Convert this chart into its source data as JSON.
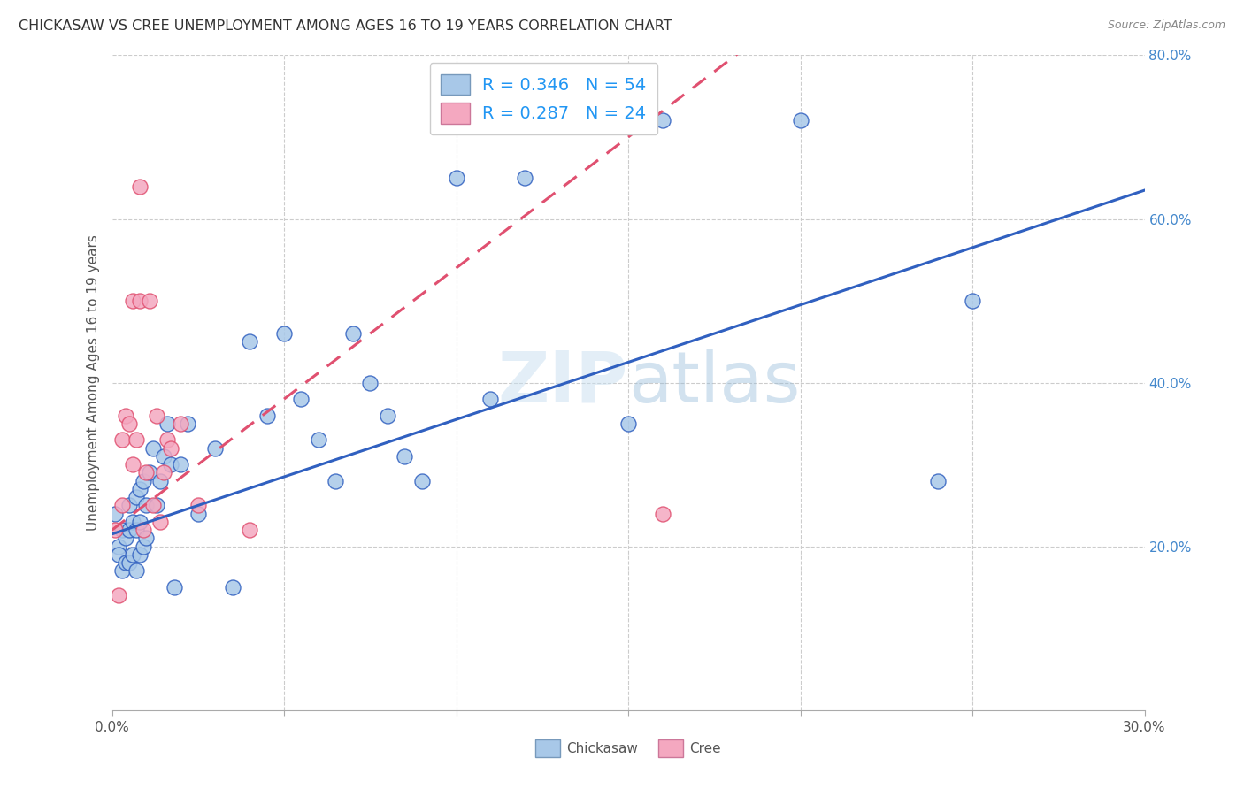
{
  "title": "CHICKASAW VS CREE UNEMPLOYMENT AMONG AGES 16 TO 19 YEARS CORRELATION CHART",
  "source": "Source: ZipAtlas.com",
  "ylabel": "Unemployment Among Ages 16 to 19 years",
  "xlim": [
    0.0,
    0.3
  ],
  "ylim": [
    0.0,
    0.8
  ],
  "chickasaw_color": "#a8c8e8",
  "cree_color": "#f4a8c0",
  "chickasaw_line_color": "#3060c0",
  "cree_line_color": "#e05070",
  "legend_text_color": "#2196F3",
  "watermark_color": "#c8dff0",
  "chickasaw_x": [
    0.001,
    0.002,
    0.002,
    0.003,
    0.003,
    0.004,
    0.004,
    0.005,
    0.005,
    0.005,
    0.006,
    0.006,
    0.007,
    0.007,
    0.007,
    0.008,
    0.008,
    0.008,
    0.009,
    0.009,
    0.01,
    0.01,
    0.011,
    0.012,
    0.013,
    0.014,
    0.015,
    0.016,
    0.017,
    0.018,
    0.02,
    0.022,
    0.025,
    0.03,
    0.035,
    0.04,
    0.045,
    0.05,
    0.055,
    0.06,
    0.065,
    0.07,
    0.075,
    0.08,
    0.085,
    0.09,
    0.1,
    0.11,
    0.12,
    0.15,
    0.16,
    0.2,
    0.24,
    0.25
  ],
  "chickasaw_y": [
    0.24,
    0.2,
    0.19,
    0.22,
    0.17,
    0.21,
    0.18,
    0.25,
    0.22,
    0.18,
    0.23,
    0.19,
    0.26,
    0.22,
    0.17,
    0.27,
    0.23,
    0.19,
    0.28,
    0.2,
    0.25,
    0.21,
    0.29,
    0.32,
    0.25,
    0.28,
    0.31,
    0.35,
    0.3,
    0.15,
    0.3,
    0.35,
    0.24,
    0.32,
    0.15,
    0.45,
    0.36,
    0.46,
    0.38,
    0.33,
    0.28,
    0.46,
    0.4,
    0.36,
    0.31,
    0.28,
    0.65,
    0.38,
    0.65,
    0.35,
    0.72,
    0.72,
    0.28,
    0.5
  ],
  "cree_x": [
    0.001,
    0.002,
    0.003,
    0.003,
    0.004,
    0.005,
    0.006,
    0.006,
    0.007,
    0.008,
    0.008,
    0.009,
    0.01,
    0.011,
    0.012,
    0.013,
    0.014,
    0.015,
    0.016,
    0.017,
    0.02,
    0.025,
    0.04,
    0.16
  ],
  "cree_y": [
    0.22,
    0.14,
    0.25,
    0.33,
    0.36,
    0.35,
    0.3,
    0.5,
    0.33,
    0.5,
    0.64,
    0.22,
    0.29,
    0.5,
    0.25,
    0.36,
    0.23,
    0.29,
    0.33,
    0.32,
    0.35,
    0.25,
    0.22,
    0.24
  ],
  "chickasaw_line_intercept": 0.215,
  "chickasaw_line_slope": 1.4,
  "cree_line_intercept": 0.22,
  "cree_line_slope": 3.2
}
